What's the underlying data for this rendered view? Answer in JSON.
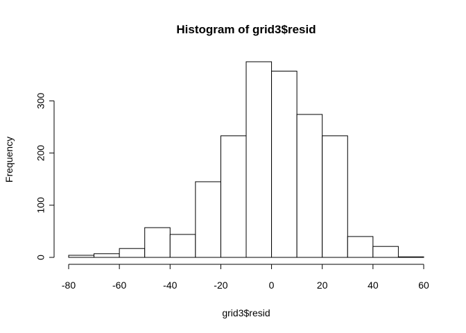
{
  "chart_data": {
    "type": "bar",
    "title": "Histogram of grid3$resid",
    "xlabel": "grid3$resid",
    "ylabel": "Frequency",
    "xlim": [
      -80,
      60
    ],
    "ylim": [
      0,
      375
    ],
    "x_ticks": [
      "-80",
      "-60",
      "-40",
      "-20",
      "0",
      "20",
      "40",
      "60"
    ],
    "y_ticks": [
      "0",
      "100",
      "200",
      "300"
    ],
    "bins": [
      {
        "from": -80,
        "to": -70,
        "count": 4
      },
      {
        "from": -70,
        "to": -60,
        "count": 7
      },
      {
        "from": -60,
        "to": -50,
        "count": 17
      },
      {
        "from": -50,
        "to": -40,
        "count": 57
      },
      {
        "from": -40,
        "to": -30,
        "count": 44
      },
      {
        "from": -30,
        "to": -20,
        "count": 145
      },
      {
        "from": -20,
        "to": -10,
        "count": 233
      },
      {
        "from": -10,
        "to": 0,
        "count": 375
      },
      {
        "from": 0,
        "to": 10,
        "count": 357
      },
      {
        "from": 10,
        "to": 20,
        "count": 274
      },
      {
        "from": 20,
        "to": 30,
        "count": 233
      },
      {
        "from": 30,
        "to": 40,
        "count": 40
      },
      {
        "from": 40,
        "to": 50,
        "count": 21
      },
      {
        "from": 50,
        "to": 60,
        "count": 1
      }
    ],
    "grid": false,
    "legend": "none",
    "colors": {
      "bar_fill": "#ffffff",
      "bar_stroke": "#000000"
    }
  }
}
